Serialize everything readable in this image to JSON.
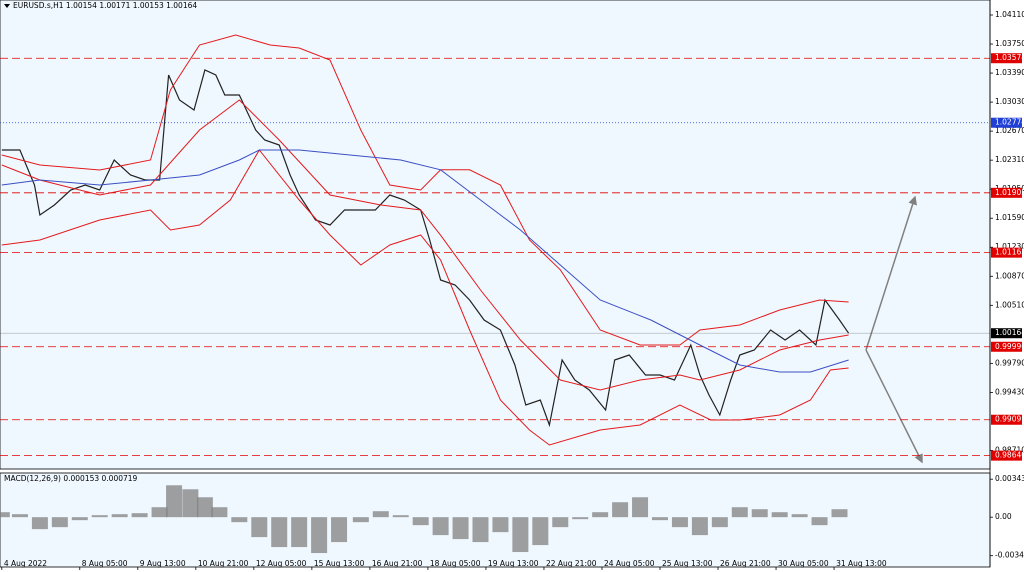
{
  "chart_data": [
    {
      "type": "line",
      "title": "EURUSD.s,H1  1.00154 1.00171 1.00153 1.00164",
      "xlim": [
        -1,
        545
      ],
      "xticks": [
        {
          "value": 0,
          "label": "4 Aug 2022"
        },
        {
          "value": 43,
          "label": "8 Aug 05:00"
        },
        {
          "value": 75,
          "label": "9 Aug 13:00"
        },
        {
          "value": 107,
          "label": "10 Aug 21:00"
        },
        {
          "value": 139,
          "label": "12 Aug 05:00"
        },
        {
          "value": 171,
          "label": "15 Aug 13:00"
        },
        {
          "value": 203,
          "label": "16 Aug 21:00"
        },
        {
          "value": 235,
          "label": "18 Aug 05:00"
        },
        {
          "value": 267,
          "label": "19 Aug 13:00"
        },
        {
          "value": 299,
          "label": "22 Aug 21:00"
        },
        {
          "value": 331,
          "label": "24 Aug 05:00"
        },
        {
          "value": 363,
          "label": "25 Aug 13:00"
        },
        {
          "value": 395,
          "label": "26 Aug 21:00"
        },
        {
          "value": 427,
          "label": "30 Aug 05:00"
        },
        {
          "value": 459,
          "label": "31 Aug 13:00"
        }
      ],
      "ylim": [
        0.98505,
        1.04296
      ],
      "yticks": [
        {
          "value": 1.0411,
          "label": "1.04110"
        },
        {
          "value": 1.0375,
          "label": "1.03750"
        },
        {
          "value": 1.0339,
          "label": "1.03390"
        },
        {
          "value": 1.0303,
          "label": "1.03030"
        },
        {
          "value": 1.0267,
          "label": "1.02670"
        },
        {
          "value": 1.0231,
          "label": "1.02310"
        },
        {
          "value": 1.0195,
          "label": "1.01950"
        },
        {
          "value": 1.0159,
          "label": "1.01590"
        },
        {
          "value": 1.0123,
          "label": "1.01230"
        },
        {
          "value": 1.0087,
          "label": "1.00870"
        },
        {
          "value": 1.0051,
          "label": "1.00510"
        },
        {
          "value": 0.9979,
          "label": "0.99790"
        },
        {
          "value": 0.9943,
          "label": "0.99430"
        },
        {
          "value": 0.9871,
          "label": "0.98710"
        }
      ],
      "levels": [
        {
          "value": 1.03574,
          "color": "#e00000",
          "style": "dashed"
        },
        {
          "value": 1.02774,
          "color": "#1f3fd6",
          "style": "dotted"
        },
        {
          "value": 1.01905,
          "color": "#e00000",
          "style": "dashed"
        },
        {
          "value": 1.01163,
          "color": "#e00000",
          "style": "dashed"
        },
        {
          "value": 1.00164,
          "color": "#000000",
          "style": "solid"
        },
        {
          "value": 0.99996,
          "color": "#e00000",
          "style": "dashed"
        },
        {
          "value": 0.99091,
          "color": "#e00000",
          "style": "dashed"
        },
        {
          "value": 0.98646,
          "color": "#e00000",
          "style": "dashed"
        }
      ],
      "series": [
        {
          "color": "#222222",
          "x": [
            0,
            10,
            18,
            21,
            29,
            38,
            46,
            54,
            62,
            71,
            79,
            87,
            92,
            98,
            106,
            112,
            118,
            123,
            131,
            140,
            145,
            153,
            159,
            164,
            173,
            181,
            189,
            198,
            206,
            214,
            222,
            231,
            236,
            242,
            250,
            258,
            266,
            275,
            283,
            289,
            297,
            302,
            309,
            316,
            324,
            333,
            338,
            346,
            355,
            363,
            371,
            380,
            385,
            390,
            396,
            402,
            407,
            415,
            424,
            432,
            440,
            449,
            454,
            462,
            467
          ],
          "values": [
            1.02436,
            1.02436,
            1.02002,
            1.0163,
            1.01754,
            1.0194,
            1.02002,
            1.0194,
            1.02312,
            1.02126,
            1.02064,
            1.02064,
            1.03366,
            1.03056,
            1.02932,
            1.03428,
            1.03366,
            1.03118,
            1.03118,
            1.02684,
            1.0256,
            1.02498,
            1.02126,
            1.01878,
            1.01568,
            1.01506,
            1.01692,
            1.01692,
            1.01692,
            1.01878,
            1.01816,
            1.01692,
            1.0132,
            1.00824,
            1.00762,
            1.00576,
            1.00328,
            1.00204,
            0.9977,
            0.99274,
            0.99336,
            0.99026,
            0.99832,
            0.99584,
            0.9946,
            0.99212,
            0.99832,
            0.99894,
            0.99646,
            0.99646,
            0.99584,
            1.00018,
            0.99646,
            0.99398,
            0.9915,
            0.99584,
            0.99894,
            0.99956,
            1.00204,
            1.0008,
            1.00204,
            1.00018,
            1.00576,
            1.00328,
            1.00164
          ]
        },
        {
          "color": "#e31a1c",
          "x": [
            0,
            21,
            54,
            82,
            93,
            109,
            129,
            148,
            164,
            181,
            198,
            214,
            231,
            242,
            258,
            275,
            291,
            308,
            330,
            352,
            374,
            385,
            407,
            429,
            451,
            467
          ],
          "values": [
            1.02374,
            1.0225,
            1.02188,
            1.02312,
            1.0318,
            1.03738,
            1.03862,
            1.03738,
            1.03701,
            1.03552,
            1.02684,
            1.02002,
            1.0194,
            1.0219,
            1.0219,
            1.02002,
            1.0132,
            1.0095,
            1.00204,
            1.00018,
            1.00018,
            1.00204,
            1.00266,
            1.00452,
            1.00576,
            1.00551
          ]
        },
        {
          "color": "#e31a1c",
          "x": [
            0,
            21,
            54,
            82,
            109,
            131,
            153,
            181,
            209,
            231,
            242,
            264,
            286,
            308,
            330,
            352,
            374,
            385,
            407,
            429,
            451,
            467
          ],
          "values": [
            1.0225,
            1.02064,
            1.01878,
            1.02002,
            1.02684,
            1.03056,
            1.0256,
            1.01878,
            1.01754,
            1.01692,
            1.0138,
            1.007,
            1.0008,
            0.99584,
            0.9946,
            0.99584,
            0.99646,
            0.99584,
            0.99708,
            0.99956,
            1.0008,
            1.00142
          ]
        },
        {
          "color": "#e31a1c",
          "x": [
            0,
            21,
            54,
            82,
            93,
            109,
            126,
            142,
            164,
            181,
            198,
            214,
            231,
            242,
            258,
            275,
            291,
            302,
            330,
            352,
            374,
            391,
            407,
            429,
            446,
            457,
            467
          ],
          "values": [
            1.01258,
            1.0132,
            1.01568,
            1.01692,
            1.01444,
            1.01506,
            1.01816,
            1.02436,
            1.01816,
            1.01382,
            1.0101,
            1.01258,
            1.01382,
            1.01072,
            1.00204,
            0.99336,
            0.98964,
            0.98778,
            0.98964,
            0.99026,
            0.99274,
            0.99088,
            0.99088,
            0.9915,
            0.99336,
            0.99708,
            0.99733
          ]
        },
        {
          "color": "#3b4fc4",
          "x": [
            0,
            21,
            54,
            82,
            109,
            131,
            142,
            164,
            192,
            220,
            242,
            264,
            286,
            308,
            330,
            358,
            385,
            407,
            429,
            446,
            467
          ],
          "values": [
            1.02002,
            1.02064,
            1.02002,
            1.02064,
            1.02126,
            1.02312,
            1.02436,
            1.02436,
            1.02374,
            1.02312,
            1.0219,
            1.01816,
            1.01444,
            1.0101,
            1.00576,
            1.00328,
            1.00018,
            0.9977,
            0.99683,
            0.99683,
            0.99832
          ]
        }
      ]
    },
    {
      "type": "bar",
      "title": "MACD(12,26,9) 0.000153 0.000719",
      "xlim": [
        -1,
        545
      ],
      "ylim": [
        -0.0045,
        0.0039
      ],
      "yticks": [
        0.003432,
        {
          "value": 0,
          "label": "0.00"
        },
        -0.003478
      ],
      "color": "#808080",
      "x": [
        0,
        10,
        21,
        32,
        43,
        54,
        65,
        76,
        87,
        95,
        104,
        112,
        120,
        131,
        142,
        153,
        164,
        175,
        186,
        198,
        209,
        220,
        231,
        242,
        253,
        264,
        275,
        286,
        297,
        308,
        319,
        330,
        341,
        352,
        363,
        374,
        385,
        396,
        407,
        418,
        429,
        440,
        451,
        462
      ],
      "values": [
        0.00045,
        0.00027,
        -0.00108,
        -0.0009,
        -0.00027,
        0.00018,
        0.00027,
        0.00036,
        0.0009,
        0.00288,
        0.00252,
        0.0018,
        0.0009,
        -0.00045,
        -0.0018,
        -0.0027,
        -0.0027,
        -0.00324,
        -0.00225,
        -0.00045,
        0.00054,
        0.00018,
        -0.00072,
        -0.00162,
        -0.00198,
        -0.00225,
        -0.00135,
        -0.00315,
        -0.00252,
        -0.0009,
        -0.00018,
        0.00045,
        0.00135,
        0.0018,
        -0.00027,
        -0.0009,
        -0.00162,
        -0.0009,
        0.0009,
        0.00072,
        0.00045,
        0.00027,
        -0.00072,
        0.00072
      ]
    }
  ]
}
